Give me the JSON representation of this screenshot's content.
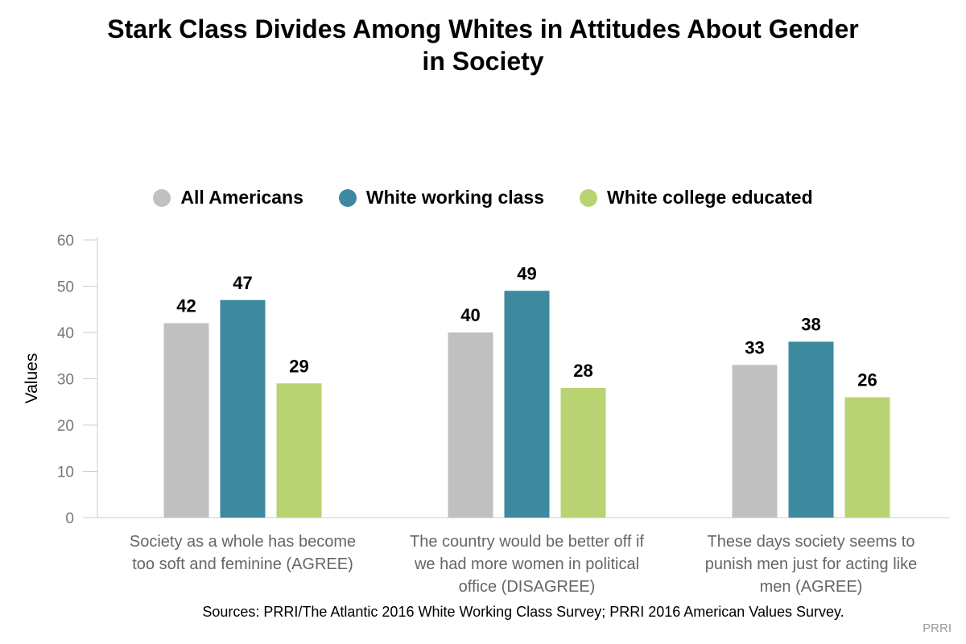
{
  "title_lines": [
    "Stark Class Divides Among Whites in Attitudes About Gender",
    "in Society"
  ],
  "legend": [
    {
      "label": "All Americans",
      "color": "#c0c0c0"
    },
    {
      "label": "White working class",
      "color": "#3d8a9f"
    },
    {
      "label": "White college educated",
      "color": "#bad372"
    }
  ],
  "source": "Sources: PRRI/The Atlantic 2016 White Working Class Survey; PRRI 2016 American Values Survey.",
  "credit": "PRRI",
  "chart_data": {
    "type": "bar",
    "title": "Stark Class Divides Among Whites in Attitudes About Gender in Society",
    "ylabel": "Values",
    "xlabel": "",
    "ylim": [
      0,
      60
    ],
    "yticks": [
      0,
      10,
      20,
      30,
      40,
      50,
      60
    ],
    "grid": false,
    "legend_position": "top-center",
    "categories": [
      [
        "Society as a whole has become",
        "too soft and feminine (AGREE)"
      ],
      [
        "The country would be better off if",
        "we had more women in political",
        "office (DISAGREE)"
      ],
      [
        "These days society seems to",
        "punish men just for acting like",
        "men (AGREE)"
      ]
    ],
    "series": [
      {
        "name": "All Americans",
        "color": "#c0c0c0",
        "values": [
          42,
          40,
          33
        ]
      },
      {
        "name": "White working class",
        "color": "#3d8a9f",
        "values": [
          47,
          49,
          38
        ]
      },
      {
        "name": "White college educated",
        "color": "#bad372",
        "values": [
          29,
          28,
          26
        ]
      }
    ]
  }
}
